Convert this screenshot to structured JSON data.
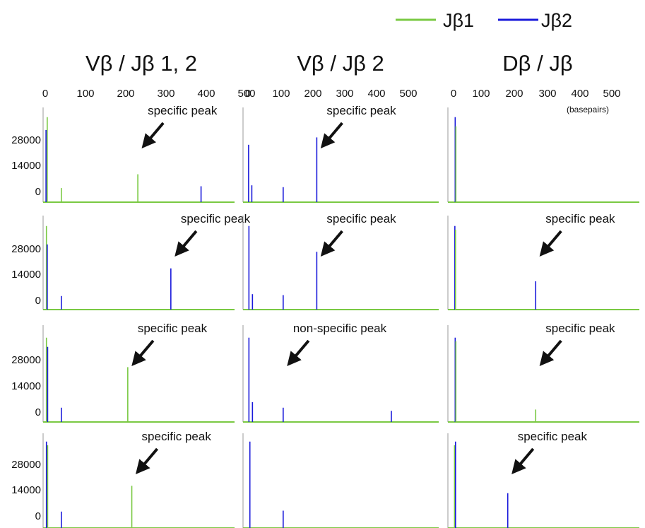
{
  "legend": [
    {
      "label": "Jβ1",
      "color": "#7ac943"
    },
    {
      "label": "Jβ2",
      "color": "#1a1adb"
    }
  ],
  "colors": {
    "jb1": "#7ac943",
    "jb2": "#1a1adb",
    "arrow": "#111111"
  },
  "columns": [
    {
      "title": "Vβ / Jβ 1, 2"
    },
    {
      "title": "Vβ / Jβ 2"
    },
    {
      "title": "Dβ / Jβ"
    }
  ],
  "x_ticks": [
    "0",
    "100",
    "200",
    "300",
    "400",
    "500"
  ],
  "x_unit_label": "(basepairs)",
  "y_ticks": [
    "28000",
    "14000",
    "0"
  ],
  "chart_data": {
    "type": "line",
    "grid": false,
    "legend_position": "top-right",
    "xlabel": "(basepairs)",
    "xlim": [
      0,
      580
    ],
    "ylim": [
      -5000,
      42000
    ],
    "x_tick_values": [
      0,
      100,
      200,
      300,
      400,
      500
    ],
    "y_tick_values": [
      28000,
      14000,
      0
    ],
    "series_names": [
      "Jβ1",
      "Jβ2"
    ],
    "panels": [
      {
        "column": "Vβ / Jβ 1, 2",
        "row": 1,
        "peaks": [
          {
            "series": "Jβ2",
            "x": 2,
            "y": 33000
          },
          {
            "series": "Jβ1",
            "x": 5,
            "y": 40000
          },
          {
            "series": "Jβ1",
            "x": 40,
            "y": 1500
          },
          {
            "series": "Jβ1",
            "x": 230,
            "y": 9000
          },
          {
            "series": "Jβ2",
            "x": 387,
            "y": 2500
          }
        ],
        "annotation": {
          "text": "specific peak",
          "x": 230
        }
      },
      {
        "column": "Vβ / Jβ 1, 2",
        "row": 2,
        "peaks": [
          {
            "series": "Jβ1",
            "x": 3,
            "y": 40000
          },
          {
            "series": "Jβ2",
            "x": 5,
            "y": 30000
          },
          {
            "series": "Jβ2",
            "x": 40,
            "y": 2000
          },
          {
            "series": "Jβ2",
            "x": 312,
            "y": 17000
          }
        ],
        "annotation": {
          "text": "specific peak",
          "x": 312
        }
      },
      {
        "column": "Vβ / Jβ 1, 2",
        "row": 3,
        "peaks": [
          {
            "series": "Jβ1",
            "x": 3,
            "y": 40000
          },
          {
            "series": "Jβ2",
            "x": 6,
            "y": 35000
          },
          {
            "series": "Jβ2",
            "x": 40,
            "y": 2000
          },
          {
            "series": "Jβ1",
            "x": 205,
            "y": 24000
          }
        ],
        "annotation": {
          "text": "specific peak",
          "x": 205
        }
      },
      {
        "column": "Vβ / Jβ 1, 2",
        "row": 4,
        "peaks": [
          {
            "series": "Jβ2",
            "x": 3,
            "y": 40000
          },
          {
            "series": "Jβ1",
            "x": 6,
            "y": 38000
          },
          {
            "series": "Jβ2",
            "x": 40,
            "y": 2000
          },
          {
            "series": "Jβ1",
            "x": 215,
            "y": 16000
          }
        ],
        "annotation": {
          "text": "specific peak",
          "x": 215
        }
      },
      {
        "column": "Vβ / Jβ 2",
        "row": 1,
        "peaks": [
          {
            "series": "Jβ2",
            "x": 2,
            "y": 25000
          },
          {
            "series": "Jβ2",
            "x": 12,
            "y": 3000
          },
          {
            "series": "Jβ2",
            "x": 110,
            "y": 2000
          },
          {
            "series": "Jβ2",
            "x": 215,
            "y": 29000
          }
        ],
        "annotation": {
          "text": "specific peak",
          "x": 215
        }
      },
      {
        "column": "Vβ / Jβ 2",
        "row": 2,
        "peaks": [
          {
            "series": "Jβ2",
            "x": 3,
            "y": 40000
          },
          {
            "series": "Jβ2",
            "x": 14,
            "y": 3000
          },
          {
            "series": "Jβ2",
            "x": 110,
            "y": 2500
          },
          {
            "series": "Jβ2",
            "x": 215,
            "y": 26000
          }
        ],
        "annotation": {
          "text": "specific peak",
          "x": 215
        }
      },
      {
        "column": "Vβ / Jβ 2",
        "row": 3,
        "peaks": [
          {
            "series": "Jβ2",
            "x": 3,
            "y": 40000
          },
          {
            "series": "Jβ2",
            "x": 14,
            "y": 5000
          },
          {
            "series": "Jβ2",
            "x": 110,
            "y": 2000
          },
          {
            "series": "Jβ2",
            "x": 448,
            "y": 300
          }
        ],
        "annotation": {
          "text": "non-specific peak",
          "x": 110
        }
      },
      {
        "column": "Vβ / Jβ 2",
        "row": 4,
        "peaks": [
          {
            "series": "Jβ2",
            "x": 6,
            "y": 40000
          },
          {
            "series": "Jβ2",
            "x": 110,
            "y": 2500
          }
        ],
        "annotation": null
      },
      {
        "column": "Dβ / Jβ",
        "row": 1,
        "peaks": [
          {
            "series": "Jβ2",
            "x": 5,
            "y": 40000
          },
          {
            "series": "Jβ1",
            "x": 7,
            "y": 35000
          }
        ],
        "annotation": null
      },
      {
        "column": "Dβ / Jβ",
        "row": 2,
        "peaks": [
          {
            "series": "Jβ2",
            "x": 4,
            "y": 40000
          },
          {
            "series": "Jβ1",
            "x": 6,
            "y": 38000
          },
          {
            "series": "Jβ2",
            "x": 250,
            "y": 10000
          }
        ],
        "annotation": {
          "text": "specific peak",
          "x": 250
        }
      },
      {
        "column": "Dβ / Jβ",
        "row": 3,
        "peaks": [
          {
            "series": "Jβ2",
            "x": 5,
            "y": 40000
          },
          {
            "series": "Jβ1",
            "x": 7,
            "y": 38000
          },
          {
            "series": "Jβ1",
            "x": 250,
            "y": 1000
          }
        ],
        "annotation": {
          "text": "specific peak",
          "x": 250
        }
      },
      {
        "column": "Dβ / Jβ",
        "row": 4,
        "peaks": [
          {
            "series": "Jβ1",
            "x": 3,
            "y": 38000
          },
          {
            "series": "Jβ2",
            "x": 6,
            "y": 40000
          },
          {
            "series": "Jβ2",
            "x": 165,
            "y": 12000
          }
        ],
        "annotation": {
          "text": "specific peak",
          "x": 165
        }
      }
    ]
  }
}
